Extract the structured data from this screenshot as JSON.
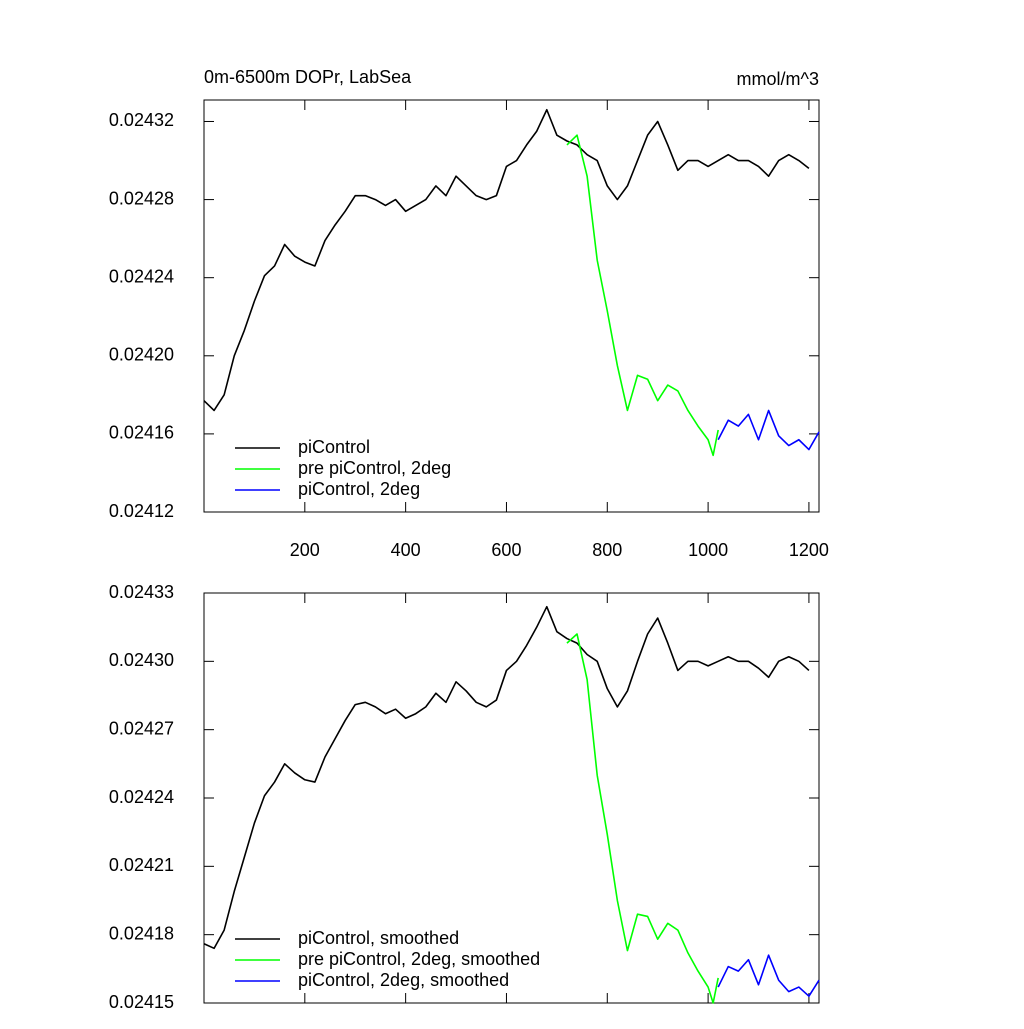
{
  "chart_data": [
    {
      "type": "line",
      "title": "0m-6500m DOPr, LabSea",
      "units_label": "mmol/m^3",
      "xlim": [
        0,
        1220
      ],
      "xticks": [
        200,
        400,
        600,
        800,
        1000,
        1200
      ],
      "xtick_labels": true,
      "ylim": [
        0.02412,
        0.024331
      ],
      "yticks": [
        0.02412,
        0.02416,
        {
          "value": 0.0242,
          "label": "0.02420"
        },
        0.02424,
        0.02428,
        0.02432
      ],
      "legend": "lower left",
      "series": [
        {
          "name": "piControl",
          "color": "#000000",
          "x": [
            0,
            20,
            40,
            60,
            80,
            100,
            120,
            140,
            160,
            180,
            200,
            220,
            240,
            260,
            280,
            300,
            320,
            340,
            360,
            380,
            400,
            420,
            440,
            460,
            480,
            500,
            520,
            540,
            560,
            580,
            600,
            620,
            640,
            660,
            680,
            700,
            720,
            740,
            760,
            780,
            800,
            820,
            840,
            860,
            880,
            900,
            920,
            940,
            960,
            980,
            1000,
            1020,
            1040,
            1060,
            1080,
            1100,
            1120,
            1140,
            1160,
            1180,
            1200
          ],
          "values": [
            0.024177,
            0.024172,
            0.02418,
            0.0242,
            0.024213,
            0.024228,
            0.024241,
            0.024246,
            0.024257,
            0.024251,
            0.024248,
            0.024246,
            0.024259,
            0.024267,
            0.024274,
            0.024282,
            0.024282,
            0.02428,
            0.024277,
            0.02428,
            0.024274,
            0.024277,
            0.02428,
            0.024287,
            0.024282,
            0.024292,
            0.024287,
            0.024282,
            0.02428,
            0.024282,
            0.024297,
            0.0243,
            0.024308,
            0.024315,
            0.024326,
            0.024313,
            0.02431,
            0.024308,
            0.024303,
            0.0243,
            0.024287,
            0.02428,
            0.024287,
            0.0243,
            0.024313,
            0.02432,
            0.024308,
            0.024295,
            0.0243,
            0.0243,
            0.024297,
            0.0243,
            0.024303,
            0.0243,
            0.0243,
            0.024297,
            0.024292,
            0.0243,
            0.024303,
            0.0243,
            0.024296
          ]
        },
        {
          "name": "pre piControl, 2deg",
          "color": "#00ff00",
          "x": [
            720,
            740,
            760,
            780,
            800,
            820,
            840,
            860,
            880,
            900,
            920,
            940,
            960,
            980,
            1000,
            1010,
            1020
          ],
          "values": [
            0.024308,
            0.024313,
            0.024292,
            0.024249,
            0.024223,
            0.024195,
            0.024172,
            0.02419,
            0.024188,
            0.024177,
            0.024185,
            0.024182,
            0.024172,
            0.024164,
            0.024157,
            0.024149,
            0.024162
          ]
        },
        {
          "name": "piControl, 2deg",
          "color": "#0000ff",
          "x": [
            1020,
            1040,
            1060,
            1080,
            1100,
            1120,
            1140,
            1160,
            1180,
            1200,
            1220
          ],
          "values": [
            0.024157,
            0.024167,
            0.024164,
            0.02417,
            0.024157,
            0.024172,
            0.024159,
            0.024154,
            0.024157,
            0.024152,
            0.024161
          ]
        }
      ]
    },
    {
      "type": "line",
      "xlim": [
        0,
        1220
      ],
      "xticks": [
        200,
        400,
        600,
        800,
        1000,
        1200
      ],
      "xtick_labels": false,
      "ylim": [
        0.02415,
        0.02433
      ],
      "yticks": [
        0.02415,
        0.02418,
        0.02421,
        0.02424,
        0.02427,
        {
          "value": 0.0243,
          "label": "0.02430"
        },
        0.02433
      ],
      "legend": "lower left",
      "series": [
        {
          "name": "piControl, smoothed",
          "color": "#000000",
          "x": [
            0,
            20,
            40,
            60,
            80,
            100,
            120,
            140,
            160,
            180,
            200,
            220,
            240,
            260,
            280,
            300,
            320,
            340,
            360,
            380,
            400,
            420,
            440,
            460,
            480,
            500,
            520,
            540,
            560,
            580,
            600,
            620,
            640,
            660,
            680,
            700,
            720,
            740,
            760,
            780,
            800,
            820,
            840,
            860,
            880,
            900,
            920,
            940,
            960,
            980,
            1000,
            1020,
            1040,
            1060,
            1080,
            1100,
            1120,
            1140,
            1160,
            1180,
            1200
          ],
          "values": [
            0.024176,
            0.024174,
            0.024182,
            0.024199,
            0.024214,
            0.024229,
            0.024241,
            0.024247,
            0.024255,
            0.024251,
            0.024248,
            0.024247,
            0.024258,
            0.024266,
            0.024274,
            0.024281,
            0.024282,
            0.02428,
            0.024277,
            0.024279,
            0.024275,
            0.024277,
            0.02428,
            0.024286,
            0.024282,
            0.024291,
            0.024287,
            0.024282,
            0.02428,
            0.024283,
            0.024296,
            0.0243,
            0.024307,
            0.024315,
            0.024324,
            0.024313,
            0.02431,
            0.024308,
            0.024303,
            0.0243,
            0.024288,
            0.02428,
            0.024287,
            0.0243,
            0.024312,
            0.024319,
            0.024308,
            0.024296,
            0.0243,
            0.0243,
            0.024298,
            0.0243,
            0.024302,
            0.0243,
            0.0243,
            0.024297,
            0.024293,
            0.0243,
            0.024302,
            0.0243,
            0.024296
          ]
        },
        {
          "name": "pre piControl, 2deg, smoothed",
          "color": "#00ff00",
          "x": [
            720,
            740,
            760,
            780,
            800,
            820,
            840,
            860,
            880,
            900,
            920,
            940,
            960,
            980,
            1000,
            1010,
            1020
          ],
          "values": [
            0.024308,
            0.024312,
            0.024292,
            0.02425,
            0.024224,
            0.024195,
            0.024173,
            0.024189,
            0.024188,
            0.024178,
            0.024185,
            0.024182,
            0.024172,
            0.024164,
            0.024157,
            0.02415,
            0.024161
          ]
        },
        {
          "name": "piControl, 2deg, smoothed",
          "color": "#0000ff",
          "x": [
            1020,
            1040,
            1060,
            1080,
            1100,
            1120,
            1140,
            1160,
            1180,
            1200,
            1220
          ],
          "values": [
            0.024157,
            0.024166,
            0.024164,
            0.024169,
            0.024158,
            0.024171,
            0.02416,
            0.024155,
            0.024157,
            0.024153,
            0.02416
          ]
        }
      ]
    }
  ]
}
